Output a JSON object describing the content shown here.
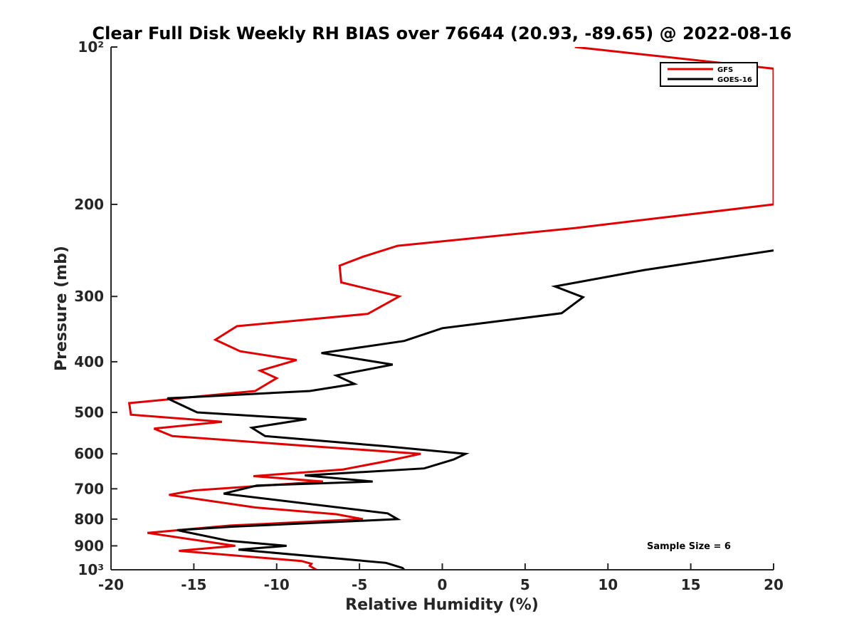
{
  "chart_data": {
    "type": "line",
    "title": "Clear Full Disk Weekly RH BIAS over 76644 (20.93, -89.65) @ 2022-08-16",
    "xlabel": "Relative Humidity (%)",
    "ylabel": "Pressure (mb)",
    "xlim": [
      -20,
      20
    ],
    "ylim": [
      100,
      1000
    ],
    "yscale": "log",
    "y_reversed": true,
    "x_ticks": [
      -20,
      -15,
      -10,
      -5,
      0,
      5,
      10,
      15,
      20
    ],
    "x_tick_labels": [
      "-20",
      "-15",
      "-10",
      "-5",
      "0",
      "5",
      "10",
      "15",
      "20"
    ],
    "y_ticks": [
      100,
      200,
      300,
      400,
      500,
      600,
      700,
      800,
      900,
      1000
    ],
    "y_tick_labels": [
      "10²",
      "200",
      "300",
      "400",
      "500",
      "600",
      "700",
      "800",
      "900",
      "10³"
    ],
    "legend_placement": "top-right",
    "annotation": "Sample Size = 6",
    "series": [
      {
        "name": "GFS",
        "color": "#e00000",
        "points": [
          [
            8,
            100
          ],
          [
            20,
            110
          ],
          [
            20,
            200
          ],
          [
            8,
            222
          ],
          [
            -2.7,
            240
          ],
          [
            -4.8,
            252
          ],
          [
            -6.2,
            262
          ],
          [
            -6.1,
            282
          ],
          [
            -2.6,
            300
          ],
          [
            -4.5,
            324
          ],
          [
            -12.4,
            342
          ],
          [
            -13.7,
            363
          ],
          [
            -12.2,
            382
          ],
          [
            -8.8,
            397
          ],
          [
            -11,
            416
          ],
          [
            -10,
            430
          ],
          [
            -11.3,
            455
          ],
          [
            -18.9,
            480
          ],
          [
            -18.8,
            505
          ],
          [
            -13.3,
            521
          ],
          [
            -17.4,
            537
          ],
          [
            -16.3,
            555
          ],
          [
            -8,
            580
          ],
          [
            -1.3,
            600
          ],
          [
            -3.5,
            621
          ],
          [
            -6,
            643
          ],
          [
            -11.4,
            662
          ],
          [
            -7.2,
            678
          ],
          [
            -15,
            705
          ],
          [
            -16.5,
            719
          ],
          [
            -11.3,
            760
          ],
          [
            -6.4,
            783
          ],
          [
            -4.8,
            800
          ],
          [
            -12.8,
            823
          ],
          [
            -17.8,
            850
          ],
          [
            -12.5,
            900
          ],
          [
            -15.9,
            920
          ],
          [
            -8.5,
            962
          ],
          [
            -7.9,
            974
          ],
          [
            -8,
            983
          ],
          [
            -7.6,
            1000
          ]
        ]
      },
      {
        "name": "GOES-16",
        "color": "#000000",
        "points": [
          [
            20,
            245
          ],
          [
            12.2,
            267
          ],
          [
            6.8,
            287
          ],
          [
            8.5,
            301
          ],
          [
            7.2,
            323
          ],
          [
            0,
            345
          ],
          [
            -2.3,
            365
          ],
          [
            -7.3,
            385
          ],
          [
            -3,
            405
          ],
          [
            -6.4,
            425
          ],
          [
            -5.3,
            441
          ],
          [
            -8,
            455
          ],
          [
            -16.6,
            470
          ],
          [
            -14.8,
            500
          ],
          [
            -8.2,
            515
          ],
          [
            -11.5,
            535
          ],
          [
            -10.7,
            555
          ],
          [
            -3.5,
            580
          ],
          [
            1.4,
            600
          ],
          [
            0.7,
            615
          ],
          [
            -1.1,
            640
          ],
          [
            -8.3,
            660
          ],
          [
            -4.2,
            678
          ],
          [
            -11.2,
            690
          ],
          [
            -13.2,
            715
          ],
          [
            -3.3,
            780
          ],
          [
            -2.7,
            800
          ],
          [
            -12.6,
            827
          ],
          [
            -16,
            840
          ],
          [
            -12.9,
            880
          ],
          [
            -9.4,
            900
          ],
          [
            -12.3,
            915
          ],
          [
            -3.4,
            970
          ],
          [
            -2.4,
            992
          ],
          [
            -2.3,
            1000
          ]
        ]
      }
    ]
  }
}
